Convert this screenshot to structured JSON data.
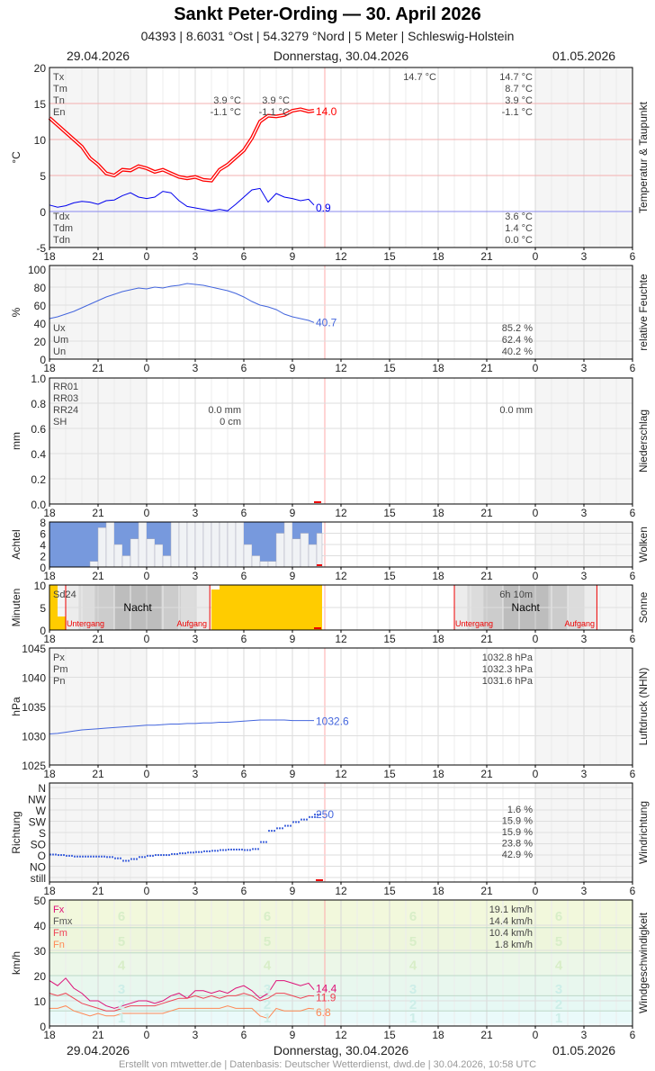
{
  "header": {
    "title": "Sankt Peter-Ording  —  30. April 2026",
    "subtitle": "04393  |  8.6031 °Ost  |  54.3279 °Nord  |  5 Meter  |  Schleswig-Holstein"
  },
  "dates": {
    "left": "29.04.2026",
    "center": "Donnerstag, 30.04.2026",
    "right": "01.05.2026"
  },
  "footer": "Erstellt von mtwetter.de | Datenbasis: Deutscher Wetterdienst, dwd.de | 30.04.2026, 10:58 UTC",
  "hour_ticks": [
    "18",
    "21",
    "0",
    "3",
    "6",
    "9",
    "12",
    "15",
    "18",
    "21",
    "0",
    "3",
    "6"
  ],
  "colors": {
    "temp": "#ff0000",
    "dew": "#0000ee",
    "hum": "#4466dd",
    "press": "#4466dd",
    "dir": "#4466dd",
    "fx": "#dd1177",
    "fm": "#ee4455",
    "fn": "#ff8855",
    "sun": "#ffcc00",
    "clear": "#7799dd",
    "now": "#ffaaaa"
  },
  "chart_data": [
    {
      "type": "line",
      "id": "temp",
      "ylabel": "°C",
      "side_label": "Temperatur & Taupunkt",
      "ylim": [
        -5,
        20
      ],
      "yticks": [
        -5,
        0,
        5,
        10,
        15,
        20
      ],
      "x": [
        "29.04 18:00",
        "18:30",
        "19:00",
        "19:30",
        "20:00",
        "20:30",
        "21:00",
        "21:30",
        "22:00",
        "22:30",
        "23:00",
        "23:30",
        "30.04 00:00",
        "00:30",
        "01:00",
        "01:30",
        "02:00",
        "02:30",
        "03:00",
        "03:30",
        "04:00",
        "04:30",
        "05:00",
        "05:30",
        "06:00",
        "06:30",
        "07:00",
        "07:30",
        "08:00",
        "08:30",
        "09:00",
        "09:30",
        "10:00",
        "10:20"
      ],
      "series": [
        {
          "key": "T",
          "values": [
            13.0,
            12.0,
            11.0,
            10.0,
            9.0,
            7.4,
            6.5,
            5.3,
            5.0,
            5.8,
            5.7,
            6.3,
            6.0,
            5.5,
            5.8,
            5.3,
            4.8,
            4.6,
            4.8,
            4.4,
            4.3,
            5.8,
            6.5,
            7.5,
            8.5,
            10.2,
            12.5,
            13.3,
            13.2,
            13.4,
            14.0,
            14.2,
            13.9,
            14.0
          ],
          "current": "14.0"
        },
        {
          "key": "Td",
          "values": [
            0.9,
            0.6,
            0.8,
            1.2,
            1.4,
            1.3,
            1.0,
            1.5,
            1.6,
            2.2,
            2.6,
            2.0,
            1.8,
            2.0,
            2.8,
            2.6,
            1.5,
            0.7,
            0.5,
            0.3,
            0.1,
            0.3,
            0.1,
            1.0,
            2.0,
            3.0,
            3.2,
            1.3,
            2.5,
            2.0,
            1.8,
            1.5,
            1.7,
            0.9
          ],
          "current": "0.9"
        }
      ],
      "stats_top": [
        {
          "label": "Tx",
          "mid": "14.7 °C",
          "right": "14.7 °C"
        },
        {
          "label": "Tm",
          "right": "8.7 °C"
        },
        {
          "label": "Tn",
          "a": "3.9 °C",
          "b": "3.9 °C",
          "right": "3.9 °C"
        },
        {
          "label": "En",
          "a": "-1.1 °C",
          "b": "-1.1 °C",
          "right": "-1.1 °C"
        }
      ],
      "stats_bottom": [
        {
          "label": "Tdx",
          "right": "3.6 °C"
        },
        {
          "label": "Tdm",
          "right": "1.4 °C"
        },
        {
          "label": "Tdn",
          "right": "0.0 °C"
        }
      ]
    },
    {
      "type": "line",
      "id": "hum",
      "ylabel": "%",
      "side_label": "relative Feuchte",
      "ylim": [
        0,
        100
      ],
      "yticks": [
        0,
        20,
        40,
        60,
        80,
        100
      ],
      "values": [
        45,
        47,
        50,
        53,
        57,
        61,
        65,
        69,
        72,
        75,
        77,
        79,
        78,
        80,
        79,
        81,
        82,
        84,
        83,
        82,
        80,
        78,
        76,
        73,
        69,
        64,
        60,
        58,
        55,
        50,
        47,
        45,
        43,
        40.7
      ],
      "current": "40.7",
      "stats": [
        {
          "label": "Ux",
          "right": "85.2 %"
        },
        {
          "label": "Um",
          "right": "62.4 %"
        },
        {
          "label": "Un",
          "right": "40.2 %"
        }
      ]
    },
    {
      "type": "bar",
      "id": "precip",
      "ylabel": "mm",
      "side_label": "Niederschlag",
      "ylim": [
        0,
        1
      ],
      "yticks": [
        "0.0",
        "0.2",
        "0.4",
        "0.6",
        "0.8",
        "1.0"
      ],
      "stats": [
        {
          "label": "RR01"
        },
        {
          "label": "RR03"
        },
        {
          "label": "RR24",
          "a": "0.0 mm",
          "right": "0.0 mm"
        },
        {
          "label": "SH",
          "a": "0 cm"
        }
      ]
    },
    {
      "type": "bar",
      "id": "cloud",
      "ylabel": "Achtel",
      "side_label": "Wolken",
      "ylim": [
        0,
        8
      ],
      "yticks": [
        0,
        2,
        4,
        6,
        8
      ],
      "values": [
        0,
        0,
        0,
        0,
        0,
        1,
        7,
        8,
        4,
        2,
        5,
        8,
        5,
        4,
        2,
        8,
        8,
        8,
        8,
        8,
        8,
        8,
        8,
        8,
        4,
        2,
        1,
        1,
        6,
        8,
        5,
        6,
        4,
        6
      ]
    },
    {
      "type": "bar",
      "id": "sun",
      "ylabel": "Minuten",
      "side_label": "Sonne",
      "ylim": [
        0,
        10
      ],
      "yticks": [
        0,
        5,
        10
      ],
      "values": [
        10,
        3,
        0,
        0,
        0,
        0,
        0,
        0,
        0,
        0,
        0,
        0,
        0,
        0,
        0,
        0,
        0,
        0,
        0,
        0,
        9,
        10,
        10,
        10,
        10,
        10,
        10,
        10,
        10,
        10,
        10,
        10,
        10,
        10
      ],
      "labels": {
        "sd24": "Sd24",
        "sd_next": "6h 10m",
        "night": "Nacht",
        "sunset": "Untergang",
        "sunrise": "Aufgang"
      },
      "events": [
        {
          "sunset": "29.04 19:00",
          "sunrise": "30.04 03:53"
        },
        {
          "sunset": "30.04 19:00",
          "sunrise": "01.05 03:48"
        }
      ]
    },
    {
      "type": "line",
      "id": "press",
      "ylabel": "hPa",
      "side_label": "Luftdruck (NHN)",
      "ylim": [
        1025,
        1045
      ],
      "yticks": [
        1025,
        1030,
        1035,
        1040,
        1045
      ],
      "values": [
        1030.3,
        1030.4,
        1030.6,
        1030.8,
        1031.0,
        1031.1,
        1031.2,
        1031.3,
        1031.4,
        1031.5,
        1031.6,
        1031.7,
        1031.8,
        1031.8,
        1031.9,
        1032.0,
        1032.0,
        1032.1,
        1032.1,
        1032.2,
        1032.2,
        1032.3,
        1032.3,
        1032.4,
        1032.5,
        1032.6,
        1032.7,
        1032.7,
        1032.7,
        1032.7,
        1032.6,
        1032.6,
        1032.6,
        1032.6
      ],
      "current": "1032.6",
      "stats": [
        {
          "label": "Px",
          "right": "1032.8 hPa"
        },
        {
          "label": "Pm",
          "right": "1032.3 hPa"
        },
        {
          "label": "Pn",
          "right": "1031.6 hPa"
        }
      ]
    },
    {
      "type": "scatter",
      "id": "dir",
      "ylabel": "Richtung",
      "side_label": "Windrichtung",
      "yticks": [
        "N",
        "NW",
        "W",
        "SW",
        "S",
        "SO",
        "O",
        "NO",
        "still"
      ],
      "values": [
        90,
        88,
        85,
        82,
        82,
        82,
        82,
        80,
        75,
        65,
        72,
        80,
        85,
        88,
        88,
        92,
        95,
        98,
        100,
        103,
        105,
        108,
        110,
        110,
        108,
        112,
        140,
        185,
        195,
        205,
        220,
        230,
        240,
        250
      ],
      "current": "250",
      "stats": [
        "1.6 %",
        "15.9 %",
        "15.9 %",
        "23.8 %",
        "42.9 %"
      ]
    },
    {
      "type": "line",
      "id": "wind",
      "ylabel": "km/h",
      "side_label": "Windgeschwindigkeit",
      "ylim": [
        0,
        50
      ],
      "yticks": [
        0,
        10,
        20,
        30,
        40,
        50
      ],
      "beaufort": [
        "1",
        "2",
        "3",
        "4",
        "5",
        "6"
      ],
      "series": [
        {
          "key": "Fx",
          "values": [
            18,
            16,
            19,
            15,
            13,
            10,
            10,
            8,
            7,
            8,
            9,
            10,
            10,
            9,
            10,
            12,
            13,
            11,
            14,
            14,
            13,
            14,
            13,
            15,
            16,
            14,
            11,
            13,
            18,
            18,
            17,
            16,
            17,
            14.4
          ],
          "current": "14.4"
        },
        {
          "key": "Fm",
          "values": [
            13,
            12,
            13,
            11,
            9,
            8,
            7,
            6,
            6,
            7,
            8,
            8,
            8,
            8,
            9,
            10,
            11,
            11,
            12,
            11,
            12,
            11,
            12,
            12,
            13,
            12,
            10,
            11,
            13,
            13,
            12,
            11,
            12,
            11.9
          ],
          "current": "11.9"
        },
        {
          "key": "Fn",
          "values": [
            7,
            7,
            8,
            6,
            5,
            4,
            5,
            4,
            4,
            5,
            5,
            5,
            5,
            5,
            5,
            6,
            7,
            7,
            7,
            7,
            7,
            7,
            8,
            7,
            7,
            7,
            4,
            3,
            7,
            6,
            6,
            6,
            7,
            6.8
          ],
          "current": "6.8"
        }
      ],
      "stats": [
        {
          "label": "Fx",
          "right": "19.1 km/h"
        },
        {
          "label": "Fmx",
          "right": "14.4 km/h"
        },
        {
          "label": "Fm",
          "right": "10.4 km/h"
        },
        {
          "label": "Fn",
          "right": "1.8 km/h"
        }
      ]
    }
  ]
}
